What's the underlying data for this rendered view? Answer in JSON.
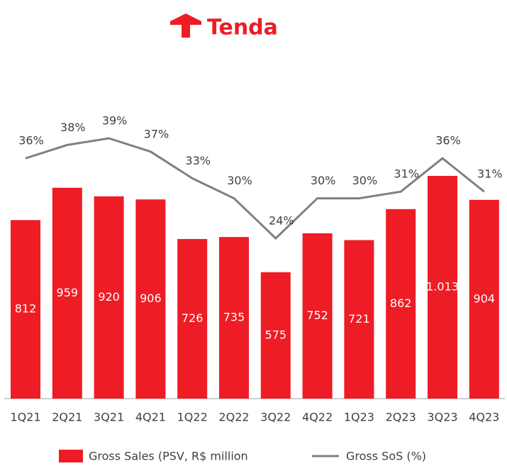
{
  "logo": "Tenda",
  "chart_data": {
    "type": "bar",
    "categories": [
      "1Q21",
      "2Q21",
      "3Q21",
      "4Q21",
      "1Q22",
      "2Q22",
      "3Q22",
      "4Q22",
      "1Q23",
      "2Q23",
      "3Q23",
      "4Q23"
    ],
    "series": [
      {
        "name": "Gross Sales (PSV, R$ million",
        "color": "#ee1c25",
        "type": "bar",
        "values": [
          812,
          959,
          920,
          906,
          726,
          735,
          575,
          752,
          721,
          862,
          1013,
          904
        ],
        "value_labels": [
          "812",
          "959",
          "920",
          "906",
          "726",
          "735",
          "575",
          "752",
          "721",
          "862",
          "1.013",
          "904"
        ]
      },
      {
        "name": "Gross SoS (%)",
        "color": "#808080",
        "type": "line",
        "values": [
          36,
          38,
          39,
          37,
          33,
          30,
          24,
          30,
          30,
          31,
          36,
          31
        ],
        "value_labels": [
          "36%",
          "38%",
          "39%",
          "37%",
          "33%",
          "30%",
          "24%",
          "30%",
          "30%",
          "31%",
          "36%",
          "31%"
        ]
      }
    ]
  }
}
